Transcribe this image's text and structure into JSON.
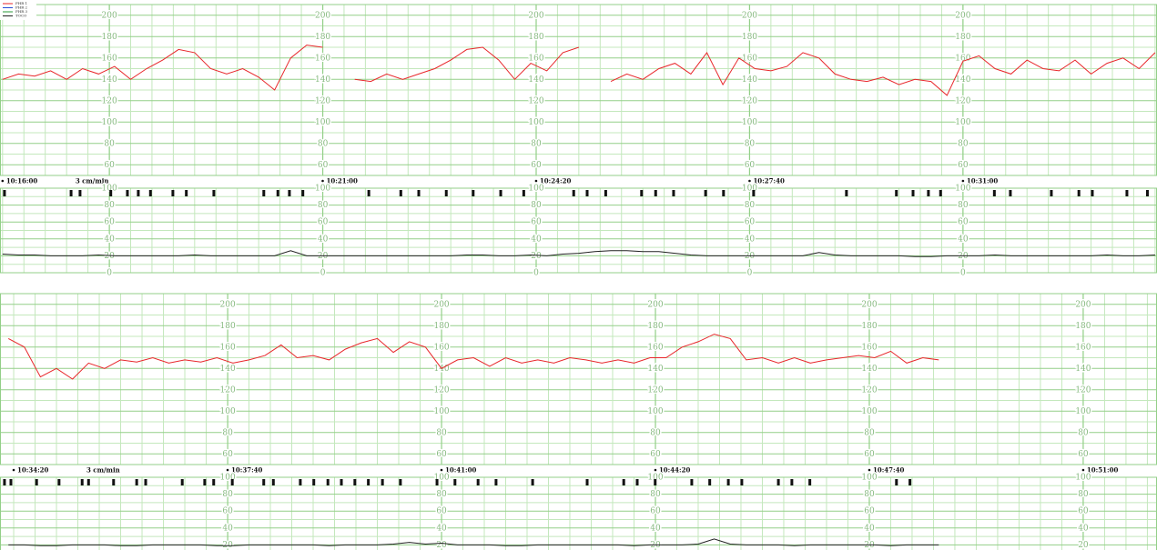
{
  "legend": [
    {
      "name": "FHR 1",
      "color": "#e8262a"
    },
    {
      "name": "FHR 2",
      "color": "#2a4fd8"
    },
    {
      "name": "FHR 3",
      "color": "#2a9a3a"
    },
    {
      "name": "TOCO",
      "color": "#222222"
    }
  ],
  "chart_data": [
    {
      "type": "line",
      "annotation": "3 cm/min",
      "xlim": [
        615.96,
        634.03
      ],
      "ylim": [
        50,
        210
      ],
      "yticks": [
        60,
        80,
        100,
        120,
        140,
        160,
        180,
        200
      ],
      "xticks": [
        {
          "value": 616,
          "label": "10:16:00"
        },
        {
          "value": 621,
          "label": "10:21:00"
        },
        {
          "value": 624.333,
          "label": "10:24:20"
        },
        {
          "value": 627.667,
          "label": "10:27:40"
        },
        {
          "value": 631,
          "label": "10:31:00"
        }
      ],
      "x": [
        616,
        616.25,
        616.5,
        616.75,
        617,
        617.25,
        617.5,
        617.75,
        618,
        618.25,
        618.5,
        618.75,
        619,
        619.25,
        619.5,
        619.75,
        620,
        620.25,
        620.5,
        620.75,
        621,
        621.25,
        621.5,
        621.75,
        622,
        622.25,
        622.5,
        622.75,
        623,
        623.25,
        623.5,
        623.75,
        624,
        624.25,
        624.5,
        624.75,
        625,
        625.25,
        625.5,
        625.75,
        626,
        626.25,
        626.5,
        626.75,
        627,
        627.25,
        627.5,
        627.75,
        628,
        628.25,
        628.5,
        628.75,
        629,
        629.25,
        629.5,
        629.75,
        630,
        630.25,
        630.5,
        630.75,
        631,
        631.25,
        631.5,
        631.75,
        632,
        632.25,
        632.5,
        632.75,
        633,
        633.25,
        633.5,
        633.75,
        634
      ],
      "series": [
        {
          "color": "#e8262a",
          "values": [
            140,
            145,
            143,
            148,
            140,
            150,
            145,
            152,
            140,
            150,
            158,
            168,
            165,
            150,
            145,
            150,
            142,
            130,
            160,
            172,
            170,
            null,
            140,
            138,
            145,
            140,
            145,
            150,
            158,
            168,
            170,
            158,
            140,
            155,
            148,
            165,
            170,
            null,
            138,
            145,
            140,
            150,
            155,
            145,
            165,
            135,
            160,
            150,
            148,
            152,
            165,
            160,
            145,
            140,
            138,
            142,
            135,
            140,
            138,
            125,
            157,
            162,
            150,
            145,
            158,
            150,
            148,
            158,
            145,
            155,
            160,
            150,
            165
          ]
        }
      ]
    },
    {
      "type": "line",
      "xlim": [
        615.96,
        634.03
      ],
      "ylim": [
        0,
        100
      ],
      "yticks": [
        0,
        20,
        40,
        60,
        80,
        100
      ],
      "events": [
        616.03,
        617.07,
        617.21,
        617.69,
        617.95,
        618.12,
        618.31,
        618.66,
        618.87,
        619.3,
        620.08,
        620.3,
        620.48,
        620.69,
        621.72,
        622.22,
        622.5,
        622.93,
        623.35,
        623.78,
        624.14,
        624.92,
        625.13,
        625.42,
        625.98,
        626.2,
        626.48,
        626.98,
        627.26,
        627.73,
        629.18,
        629.96,
        630.22,
        630.46,
        630.65,
        631.49,
        631.74,
        632.38,
        632.81,
        633.02,
        633.56,
        633.88
      ],
      "x": [
        616,
        616.25,
        616.5,
        616.75,
        617,
        617.25,
        617.5,
        617.75,
        618,
        618.25,
        618.5,
        618.75,
        619,
        619.25,
        619.5,
        619.75,
        620,
        620.25,
        620.5,
        620.75,
        621,
        621.25,
        621.5,
        621.75,
        622,
        622.25,
        622.5,
        622.75,
        623,
        623.25,
        623.5,
        623.75,
        624,
        624.25,
        624.5,
        624.75,
        625,
        625.25,
        625.5,
        625.75,
        626,
        626.25,
        626.5,
        626.75,
        627,
        627.25,
        627.5,
        627.75,
        628,
        628.25,
        628.5,
        628.75,
        629,
        629.25,
        629.5,
        629.75,
        630,
        630.25,
        630.5,
        630.75,
        631,
        631.25,
        631.5,
        631.75,
        632,
        632.25,
        632.5,
        632.75,
        633,
        633.25,
        633.5,
        633.75,
        634
      ],
      "series": [
        {
          "color": "#222222",
          "values": [
            22,
            21,
            21,
            20,
            20,
            20,
            21,
            20,
            20,
            20,
            20,
            20,
            21,
            20,
            20,
            20,
            20,
            20,
            26,
            20,
            20,
            20,
            20,
            20,
            20,
            20,
            20,
            20,
            20,
            21,
            21,
            20,
            20,
            21,
            20,
            22,
            23,
            25,
            26,
            26,
            25,
            25,
            23,
            21,
            20,
            20,
            20,
            20,
            20,
            20,
            20,
            24,
            21,
            20,
            20,
            20,
            20,
            19,
            19,
            20,
            20,
            20,
            21,
            20,
            20,
            20,
            20,
            20,
            20,
            21,
            20,
            20,
            21
          ]
        }
      ]
    },
    {
      "type": "line",
      "annotation": "3 cm/min",
      "xlim": [
        634.12,
        652.15
      ],
      "ylim": [
        50,
        210
      ],
      "yticks": [
        60,
        80,
        100,
        120,
        140,
        160,
        180,
        200
      ],
      "xticks": [
        {
          "value": 634.333,
          "label": "10:34:20"
        },
        {
          "value": 637.667,
          "label": "10:37:40"
        },
        {
          "value": 641,
          "label": "10:41:00"
        },
        {
          "value": 644.333,
          "label": "10:44:20"
        },
        {
          "value": 647.667,
          "label": "10:47:40"
        },
        {
          "value": 651,
          "label": "10:51:00"
        }
      ],
      "x": [
        634.25,
        634.5,
        634.75,
        635,
        635.25,
        635.5,
        635.75,
        636,
        636.25,
        636.5,
        636.75,
        637,
        637.25,
        637.5,
        637.75,
        638,
        638.25,
        638.5,
        638.75,
        639,
        639.25,
        639.5,
        639.75,
        640,
        640.25,
        640.5,
        640.75,
        641,
        641.25,
        641.5,
        641.75,
        642,
        642.25,
        642.5,
        642.75,
        643,
        643.25,
        643.5,
        643.75,
        644,
        644.25,
        644.5,
        644.75,
        645,
        645.25,
        645.5,
        645.75,
        646,
        646.25,
        646.5,
        646.75,
        647,
        647.25,
        647.5,
        647.75,
        648,
        648.25,
        648.5,
        648.75
      ],
      "series": [
        {
          "color": "#e8262a",
          "values": [
            168,
            160,
            132,
            140,
            130,
            145,
            140,
            148,
            146,
            150,
            145,
            148,
            146,
            150,
            145,
            148,
            152,
            162,
            150,
            152,
            148,
            158,
            164,
            168,
            155,
            165,
            160,
            140,
            148,
            150,
            142,
            150,
            145,
            148,
            145,
            150,
            148,
            145,
            148,
            145,
            150,
            150,
            160,
            165,
            172,
            168,
            148,
            150,
            145,
            150,
            145,
            148,
            150,
            152,
            150,
            156,
            145,
            150,
            148
          ]
        }
      ]
    },
    {
      "type": "line",
      "xlim": [
        634.12,
        652.15
      ],
      "ylim": [
        0,
        100
      ],
      "yticks": [
        0,
        20,
        40,
        60,
        80,
        100
      ],
      "events": [
        634.19,
        634.29,
        634.69,
        635.04,
        635.4,
        635.5,
        635.89,
        636.25,
        636.39,
        636.96,
        637.31,
        637.45,
        637.74,
        638.23,
        638.38,
        638.8,
        639.01,
        639.23,
        639.44,
        639.65,
        639.86,
        640.08,
        640.36,
        640.93,
        641.21,
        641.57,
        641.85,
        642.42,
        643.27,
        643.84,
        644.05,
        644.33,
        644.9,
        645.18,
        645.47,
        645.68,
        646.25,
        646.46,
        646.74,
        648.09,
        648.3
      ],
      "x": [
        634.25,
        634.5,
        634.75,
        635,
        635.25,
        635.5,
        635.75,
        636,
        636.25,
        636.5,
        636.75,
        637,
        637.25,
        637.5,
        637.75,
        638,
        638.25,
        638.5,
        638.75,
        639,
        639.25,
        639.5,
        639.75,
        640,
        640.25,
        640.5,
        640.75,
        641,
        641.25,
        641.5,
        641.75,
        642,
        642.25,
        642.5,
        642.75,
        643,
        643.25,
        643.5,
        643.75,
        644,
        644.25,
        644.5,
        644.75,
        645,
        645.25,
        645.5,
        645.75,
        646,
        646.25,
        646.5,
        646.75,
        647,
        647.25,
        647.5,
        647.75,
        648,
        648.25,
        648.5,
        648.75
      ],
      "series": [
        {
          "color": "#222222",
          "values": [
            20,
            20,
            19,
            19,
            20,
            20,
            20,
            19,
            19,
            20,
            20,
            20,
            20,
            19,
            19,
            20,
            20,
            20,
            20,
            20,
            19,
            20,
            20,
            20,
            21,
            23,
            21,
            22,
            20,
            20,
            20,
            19,
            19,
            20,
            20,
            20,
            20,
            20,
            20,
            19,
            20,
            20,
            20,
            21,
            27,
            21,
            20,
            20,
            20,
            19,
            20,
            20,
            20,
            20,
            20,
            19,
            20,
            20,
            20
          ]
        }
      ]
    }
  ]
}
